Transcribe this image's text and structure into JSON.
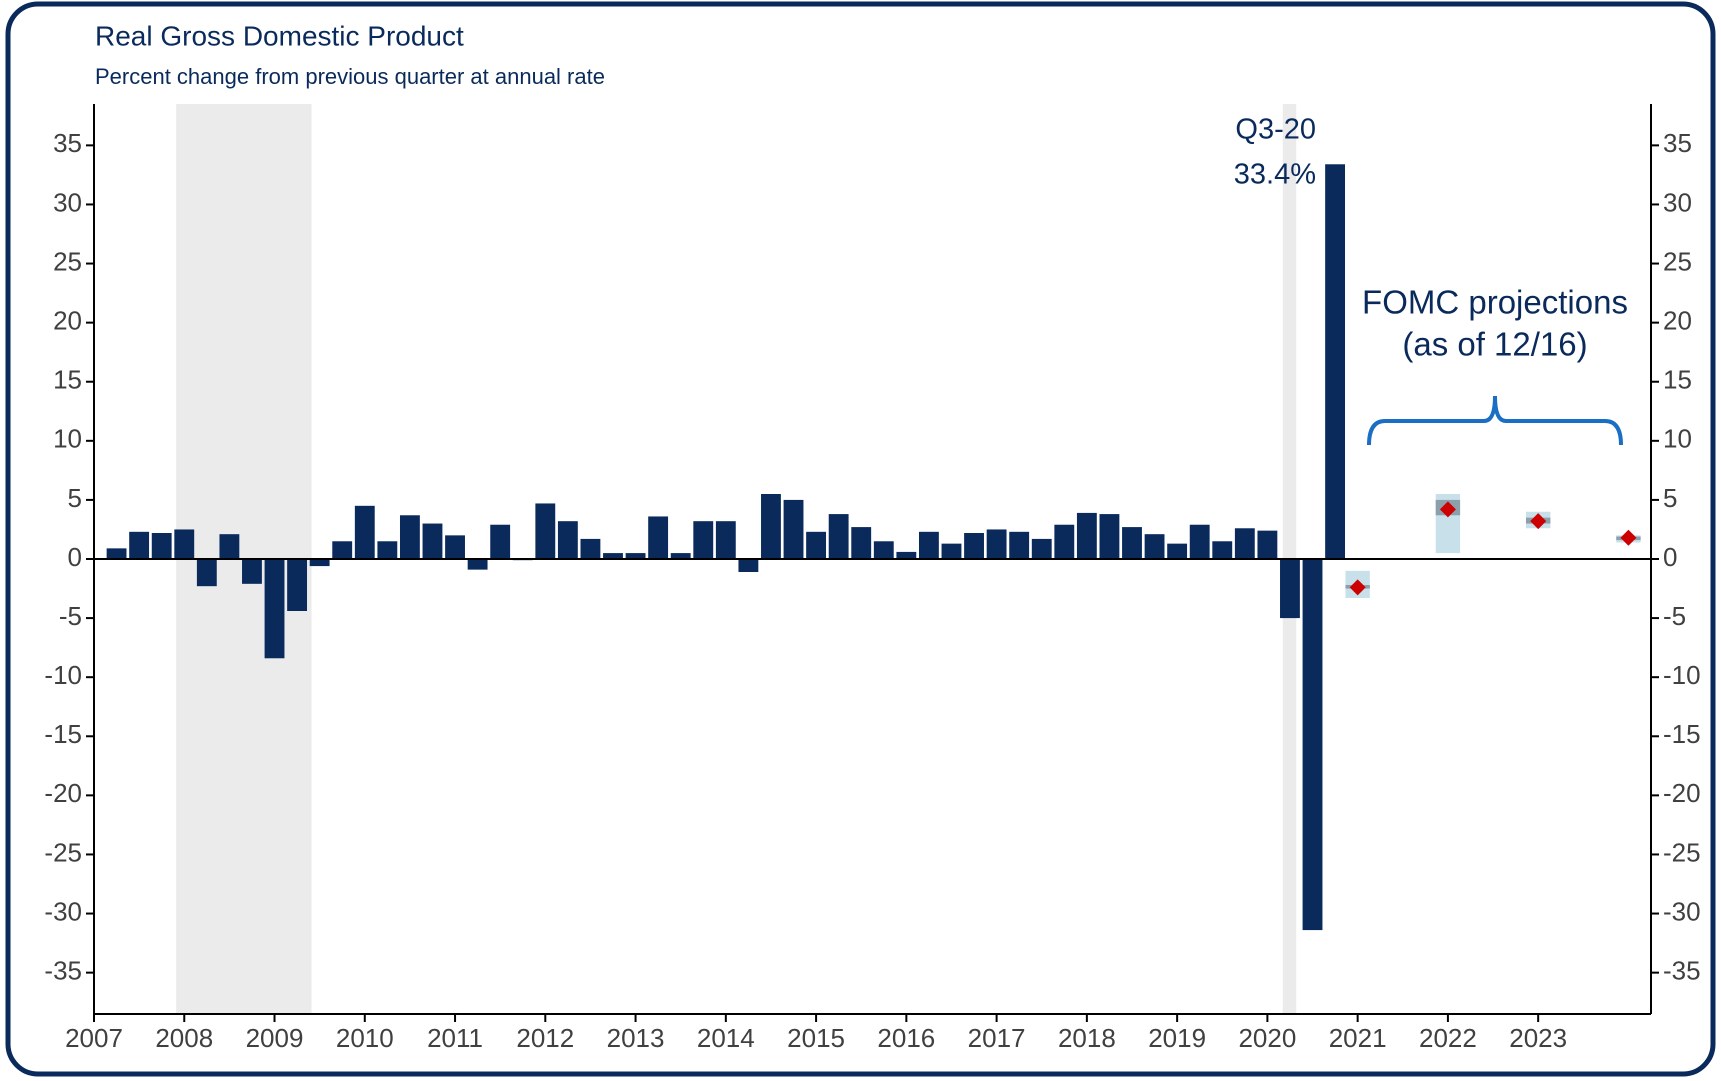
{
  "chart_data": {
    "type": "bar",
    "title": "Real Gross Domestic Product",
    "subtitle": "Percent change from previous quarter at annual rate",
    "xlim": [
      2007,
      2024.25
    ],
    "xticks": [
      2007,
      2008,
      2009,
      2010,
      2011,
      2012,
      2013,
      2014,
      2015,
      2016,
      2017,
      2018,
      2019,
      2020,
      2021,
      2022,
      2023
    ],
    "ylim": [
      -38.5,
      38.5
    ],
    "yticks": [
      -35,
      -30,
      -25,
      -20,
      -15,
      -10,
      -5,
      0,
      5,
      10,
      15,
      20,
      25,
      30,
      35
    ],
    "y2lim": [
      -38.5,
      38.5
    ],
    "y2ticks": [
      -35,
      -30,
      -25,
      -20,
      -15,
      -10,
      -5,
      0,
      5,
      10,
      15,
      20,
      25,
      30,
      35
    ],
    "recessions": [
      [
        2007.91,
        2009.41
      ],
      [
        2020.17,
        2020.32
      ]
    ],
    "recession_color": "#ebebeb",
    "bars": {
      "color": "#0a2a5c",
      "x": [
        2007.25,
        2007.5,
        2007.75,
        2008,
        2008.25,
        2008.5,
        2008.75,
        2009,
        2009.25,
        2009.5,
        2009.75,
        2010,
        2010.25,
        2010.5,
        2010.75,
        2011,
        2011.25,
        2011.5,
        2011.75,
        2012,
        2012.25,
        2012.5,
        2012.75,
        2013,
        2013.25,
        2013.5,
        2013.75,
        2014,
        2014.25,
        2014.5,
        2014.75,
        2015,
        2015.25,
        2015.5,
        2015.75,
        2016,
        2016.25,
        2016.5,
        2016.75,
        2017,
        2017.25,
        2017.5,
        2017.75,
        2018,
        2018.25,
        2018.5,
        2018.75,
        2019,
        2019.25,
        2019.5,
        2019.75,
        2020,
        2020.25,
        2020.5,
        2020.75
      ],
      "values": [
        0.9,
        2.3,
        2.2,
        2.5,
        -2.3,
        2.1,
        -2.1,
        -8.4,
        -4.4,
        -0.6,
        1.5,
        4.5,
        1.5,
        3.7,
        3.0,
        2.0,
        -0.9,
        2.9,
        -0.1,
        4.7,
        3.2,
        1.7,
        0.5,
        0.5,
        3.6,
        0.5,
        3.2,
        3.2,
        -1.1,
        5.5,
        5.0,
        2.3,
        3.8,
        2.7,
        1.5,
        0.6,
        2.3,
        1.3,
        2.2,
        2.5,
        2.3,
        1.7,
        2.9,
        3.9,
        3.8,
        2.7,
        2.1,
        1.3,
        2.9,
        1.5,
        2.6,
        2.4,
        -5.0,
        -31.4,
        33.4
      ]
    },
    "projections": {
      "x": [
        2021,
        2022,
        2023,
        2024
      ],
      "values": [
        -2.4,
        4.2,
        3.2,
        1.8
      ],
      "range_low": [
        -3.3,
        0.5,
        2.6,
        1.4
      ],
      "range_high": [
        -1.0,
        5.5,
        4.0,
        2.0
      ],
      "central_low": [
        -2.5,
        3.7,
        3.0,
        1.6
      ],
      "central_high": [
        -2.2,
        5.0,
        3.5,
        1.9
      ],
      "range_color": "#c7e0ea",
      "central_color": "#8c9fab",
      "marker_color": "#cc0000"
    },
    "annotations": [
      "Q3-20",
      "33.4%",
      "FOMC projections",
      "(as of 12/16)"
    ]
  }
}
